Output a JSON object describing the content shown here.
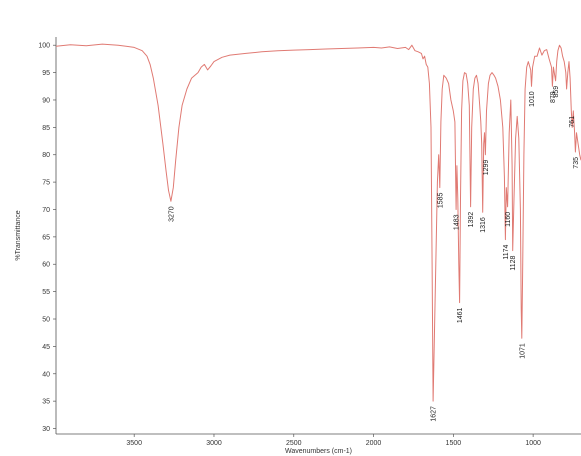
{
  "chart_data": {
    "type": "line",
    "title": "",
    "xlabel": "Wavenumbers (cm-1)",
    "ylabel": "%Transmittance",
    "xlim": [
      3990,
      700
    ],
    "ylim": [
      29,
      101.5
    ],
    "x_reversed": true,
    "grid": false,
    "line_color": "#e07a73",
    "x_ticks": [
      3500,
      3000,
      2500,
      2000,
      1500,
      1000
    ],
    "y_ticks": [
      30,
      35,
      40,
      45,
      50,
      55,
      60,
      65,
      70,
      75,
      80,
      85,
      90,
      95,
      100
    ],
    "series": [
      {
        "points": [
          [
            3990,
            99.8
          ],
          [
            3900,
            100.1
          ],
          [
            3800,
            99.9
          ],
          [
            3700,
            100.2
          ],
          [
            3600,
            100.0
          ],
          [
            3500,
            99.6
          ],
          [
            3450,
            99.0
          ],
          [
            3420,
            98.0
          ],
          [
            3400,
            96.5
          ],
          [
            3380,
            94.0
          ],
          [
            3350,
            89.0
          ],
          [
            3320,
            82.0
          ],
          [
            3300,
            77.0
          ],
          [
            3285,
            73.5
          ],
          [
            3270,
            71.5
          ],
          [
            3255,
            74.0
          ],
          [
            3240,
            79.0
          ],
          [
            3220,
            85.0
          ],
          [
            3200,
            89.0
          ],
          [
            3170,
            92.0
          ],
          [
            3140,
            94.0
          ],
          [
            3100,
            95.0
          ],
          [
            3080,
            96.0
          ],
          [
            3060,
            96.5
          ],
          [
            3040,
            95.5
          ],
          [
            3020,
            96.2
          ],
          [
            3000,
            97.0
          ],
          [
            2950,
            97.8
          ],
          [
            2900,
            98.2
          ],
          [
            2800,
            98.5
          ],
          [
            2700,
            98.8
          ],
          [
            2600,
            99.0
          ],
          [
            2500,
            99.1
          ],
          [
            2400,
            99.2
          ],
          [
            2300,
            99.3
          ],
          [
            2200,
            99.4
          ],
          [
            2100,
            99.5
          ],
          [
            2000,
            99.6
          ],
          [
            1950,
            99.5
          ],
          [
            1900,
            99.7
          ],
          [
            1850,
            99.4
          ],
          [
            1800,
            99.6
          ],
          [
            1780,
            99.2
          ],
          [
            1760,
            100.0
          ],
          [
            1740,
            99.0
          ],
          [
            1720,
            98.8
          ],
          [
            1700,
            98.5
          ],
          [
            1690,
            97.5
          ],
          [
            1680,
            98.0
          ],
          [
            1670,
            96.5
          ],
          [
            1660,
            96.0
          ],
          [
            1650,
            93.0
          ],
          [
            1640,
            85.0
          ],
          [
            1633,
            60.0
          ],
          [
            1627,
            35.0
          ],
          [
            1620,
            45.0
          ],
          [
            1610,
            60.0
          ],
          [
            1600,
            75.0
          ],
          [
            1592,
            80.0
          ],
          [
            1585,
            74.0
          ],
          [
            1578,
            86.0
          ],
          [
            1570,
            92.0
          ],
          [
            1560,
            94.5
          ],
          [
            1545,
            94.0
          ],
          [
            1530,
            93.0
          ],
          [
            1515,
            90.0
          ],
          [
            1500,
            88.0
          ],
          [
            1490,
            86.0
          ],
          [
            1483,
            70.0
          ],
          [
            1478,
            78.0
          ],
          [
            1472,
            72.0
          ],
          [
            1466,
            60.0
          ],
          [
            1461,
            53.0
          ],
          [
            1455,
            72.0
          ],
          [
            1448,
            88.0
          ],
          [
            1440,
            93.5
          ],
          [
            1430,
            95.0
          ],
          [
            1420,
            94.8
          ],
          [
            1410,
            93.0
          ],
          [
            1400,
            89.0
          ],
          [
            1392,
            70.5
          ],
          [
            1385,
            85.0
          ],
          [
            1375,
            92.0
          ],
          [
            1365,
            94.0
          ],
          [
            1355,
            94.5
          ],
          [
            1345,
            93.0
          ],
          [
            1335,
            89.0
          ],
          [
            1328,
            86.0
          ],
          [
            1322,
            82.0
          ],
          [
            1316,
            69.5
          ],
          [
            1310,
            82.0
          ],
          [
            1305,
            84.0
          ],
          [
            1299,
            80.0
          ],
          [
            1292,
            88.0
          ],
          [
            1280,
            93.0
          ],
          [
            1270,
            94.5
          ],
          [
            1258,
            95.0
          ],
          [
            1245,
            94.5
          ],
          [
            1235,
            94.0
          ],
          [
            1220,
            92.5
          ],
          [
            1205,
            90.0
          ],
          [
            1190,
            85.0
          ],
          [
            1180,
            76.0
          ],
          [
            1174,
            64.5
          ],
          [
            1168,
            74.0
          ],
          [
            1160,
            70.5
          ],
          [
            1150,
            84.0
          ],
          [
            1140,
            90.0
          ],
          [
            1132,
            78.0
          ],
          [
            1128,
            62.5
          ],
          [
            1120,
            72.0
          ],
          [
            1110,
            83.0
          ],
          [
            1100,
            87.0
          ],
          [
            1090,
            83.0
          ],
          [
            1080,
            70.0
          ],
          [
            1075,
            52.0
          ],
          [
            1071,
            46.5
          ],
          [
            1066,
            58.0
          ],
          [
            1058,
            80.0
          ],
          [
            1050,
            92.0
          ],
          [
            1040,
            96.0
          ],
          [
            1030,
            97.0
          ],
          [
            1015,
            95.5
          ],
          [
            1010,
            92.5
          ],
          [
            1003,
            96.0
          ],
          [
            990,
            98.0
          ],
          [
            975,
            98.0
          ],
          [
            960,
            99.5
          ],
          [
            945,
            98.2
          ],
          [
            930,
            99.0
          ],
          [
            915,
            99.2
          ],
          [
            900,
            97.5
          ],
          [
            885,
            96.0
          ],
          [
            879,
            92.5
          ],
          [
            873,
            96.0
          ],
          [
            865,
            94.5
          ],
          [
            859,
            93.5
          ],
          [
            852,
            97.0
          ],
          [
            845,
            99.0
          ],
          [
            835,
            100.0
          ],
          [
            825,
            99.5
          ],
          [
            815,
            98.0
          ],
          [
            805,
            97.0
          ],
          [
            795,
            95.0
          ],
          [
            790,
            92.0
          ],
          [
            783,
            95.0
          ],
          [
            775,
            97.0
          ],
          [
            768,
            94.0
          ],
          [
            761,
            88.0
          ],
          [
            755,
            85.0
          ],
          [
            748,
            88.0
          ],
          [
            740,
            84.0
          ],
          [
            735,
            80.5
          ],
          [
            728,
            84.0
          ],
          [
            718,
            82.0
          ],
          [
            708,
            80.0
          ],
          [
            700,
            79.0
          ]
        ]
      }
    ],
    "peak_labels": [
      {
        "text": "3270",
        "x": 3270,
        "y": 71.5
      },
      {
        "text": "1627",
        "x": 1627,
        "y": 35.0
      },
      {
        "text": "1585",
        "x": 1585,
        "y": 74.0
      },
      {
        "text": "1483",
        "x": 1483,
        "y": 70.0
      },
      {
        "text": "1461",
        "x": 1461,
        "y": 53.0
      },
      {
        "text": "1392",
        "x": 1392,
        "y": 70.5
      },
      {
        "text": "1316",
        "x": 1316,
        "y": 69.5
      },
      {
        "text": "1299",
        "x": 1299,
        "y": 80.0
      },
      {
        "text": "1174",
        "x": 1174,
        "y": 64.5
      },
      {
        "text": "1160",
        "x": 1160,
        "y": 70.5
      },
      {
        "text": "1128",
        "x": 1128,
        "y": 62.5
      },
      {
        "text": "1071",
        "x": 1071,
        "y": 46.5
      },
      {
        "text": "1010",
        "x": 1010,
        "y": 92.5
      },
      {
        "text": "879",
        "x": 879,
        "y": 92.5
      },
      {
        "text": "859",
        "x": 859,
        "y": 93.5
      },
      {
        "text": "761",
        "x": 761,
        "y": 88.0
      },
      {
        "text": "735",
        "x": 735,
        "y": 80.5
      }
    ]
  }
}
